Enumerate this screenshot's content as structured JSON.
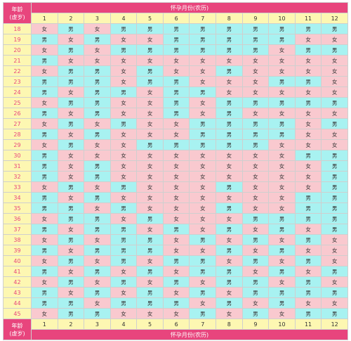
{
  "header": {
    "age_label_line1": "年龄",
    "age_label_line2": "(虚岁)",
    "months_label": "怀孕月份(农历)"
  },
  "footer": {
    "age_label_line1": "年龄",
    "age_label_line2": "(虚岁)",
    "months_label": "怀孕月份(农历)"
  },
  "months": [
    "1",
    "2",
    "3",
    "4",
    "5",
    "6",
    "7",
    "8",
    "9",
    "10",
    "11",
    "12"
  ],
  "legend": {
    "girl": "女",
    "boy": "男"
  },
  "colors": {
    "header": "#e8457d",
    "month_row": "#fdf7b2",
    "boy": "#a8f2f1",
    "girl": "#f9c9cf"
  },
  "rows": [
    {
      "age": "18",
      "cells": [
        "女",
        "男",
        "女",
        "男",
        "男",
        "男",
        "男",
        "男",
        "男",
        "男",
        "男",
        "男"
      ]
    },
    {
      "age": "19",
      "cells": [
        "男",
        "女",
        "男",
        "女",
        "女",
        "男",
        "男",
        "男",
        "男",
        "男",
        "女",
        "女"
      ]
    },
    {
      "age": "20",
      "cells": [
        "女",
        "男",
        "女",
        "男",
        "男",
        "男",
        "男",
        "男",
        "男",
        "女",
        "男",
        "男"
      ]
    },
    {
      "age": "21",
      "cells": [
        "男",
        "女",
        "女",
        "女",
        "女",
        "女",
        "女",
        "女",
        "女",
        "女",
        "女",
        "女"
      ]
    },
    {
      "age": "22",
      "cells": [
        "女",
        "男",
        "男",
        "女",
        "男",
        "女",
        "女",
        "男",
        "女",
        "女",
        "女",
        "女"
      ]
    },
    {
      "age": "23",
      "cells": [
        "男",
        "男",
        "男",
        "女",
        "男",
        "男",
        "女",
        "女",
        "女",
        "男",
        "男",
        "女"
      ]
    },
    {
      "age": "24",
      "cells": [
        "男",
        "女",
        "男",
        "男",
        "女",
        "男",
        "男",
        "女",
        "女",
        "女",
        "女",
        "女"
      ]
    },
    {
      "age": "25",
      "cells": [
        "女",
        "男",
        "男",
        "女",
        "女",
        "男",
        "女",
        "男",
        "男",
        "男",
        "男",
        "男"
      ]
    },
    {
      "age": "26",
      "cells": [
        "男",
        "女",
        "男",
        "女",
        "女",
        "男",
        "女",
        "男",
        "女",
        "女",
        "女",
        "女"
      ]
    },
    {
      "age": "27",
      "cells": [
        "女",
        "男",
        "女",
        "男",
        "女",
        "女",
        "男",
        "男",
        "男",
        "男",
        "女",
        "男"
      ]
    },
    {
      "age": "28",
      "cells": [
        "男",
        "女",
        "男",
        "女",
        "女",
        "女",
        "男",
        "男",
        "男",
        "男",
        "女",
        "女"
      ]
    },
    {
      "age": "29",
      "cells": [
        "女",
        "男",
        "女",
        "女",
        "男",
        "男",
        "男",
        "男",
        "男",
        "女",
        "女",
        "女"
      ]
    },
    {
      "age": "30",
      "cells": [
        "男",
        "女",
        "女",
        "女",
        "女",
        "女",
        "女",
        "女",
        "女",
        "女",
        "男",
        "男"
      ]
    },
    {
      "age": "31",
      "cells": [
        "男",
        "女",
        "男",
        "女",
        "女",
        "女",
        "女",
        "女",
        "女",
        "女",
        "女",
        "男"
      ]
    },
    {
      "age": "32",
      "cells": [
        "男",
        "女",
        "男",
        "女",
        "女",
        "女",
        "女",
        "女",
        "女",
        "女",
        "女",
        "男"
      ]
    },
    {
      "age": "33",
      "cells": [
        "女",
        "男",
        "女",
        "男",
        "女",
        "女",
        "女",
        "男",
        "女",
        "女",
        "女",
        "男"
      ]
    },
    {
      "age": "34",
      "cells": [
        "男",
        "女",
        "男",
        "女",
        "女",
        "女",
        "女",
        "女",
        "女",
        "女",
        "男",
        "男"
      ]
    },
    {
      "age": "35",
      "cells": [
        "男",
        "男",
        "女",
        "男",
        "女",
        "女",
        "女",
        "男",
        "女",
        "女",
        "男",
        "男"
      ]
    },
    {
      "age": "36",
      "cells": [
        "女",
        "男",
        "男",
        "女",
        "男",
        "女",
        "女",
        "女",
        "男",
        "男",
        "男",
        "男"
      ]
    },
    {
      "age": "37",
      "cells": [
        "男",
        "女",
        "男",
        "男",
        "女",
        "男",
        "女",
        "男",
        "女",
        "男",
        "女",
        "男"
      ]
    },
    {
      "age": "38",
      "cells": [
        "女",
        "男",
        "女",
        "男",
        "男",
        "女",
        "男",
        "女",
        "男",
        "女",
        "男",
        "女"
      ]
    },
    {
      "age": "39",
      "cells": [
        "男",
        "女",
        "男",
        "男",
        "男",
        "女",
        "女",
        "男",
        "女",
        "男",
        "女",
        "女"
      ]
    },
    {
      "age": "40",
      "cells": [
        "女",
        "男",
        "女",
        "男",
        "女",
        "男",
        "男",
        "女",
        "男",
        "女",
        "男",
        "女"
      ]
    },
    {
      "age": "41",
      "cells": [
        "男",
        "女",
        "男",
        "女",
        "男",
        "女",
        "男",
        "男",
        "女",
        "男",
        "女",
        "男"
      ]
    },
    {
      "age": "42",
      "cells": [
        "女",
        "男",
        "女",
        "男",
        "女",
        "男",
        "女",
        "男",
        "男",
        "女",
        "男",
        "女"
      ]
    },
    {
      "age": "43",
      "cells": [
        "男",
        "女",
        "男",
        "女",
        "男",
        "女",
        "男",
        "女",
        "男",
        "男",
        "男",
        "男"
      ]
    },
    {
      "age": "44",
      "cells": [
        "男",
        "男",
        "女",
        "男",
        "男",
        "男",
        "女",
        "男",
        "女",
        "男",
        "女",
        "女"
      ]
    },
    {
      "age": "45",
      "cells": [
        "女",
        "男",
        "男",
        "女",
        "女",
        "女",
        "男",
        "女",
        "男",
        "女",
        "男",
        "男"
      ]
    }
  ]
}
